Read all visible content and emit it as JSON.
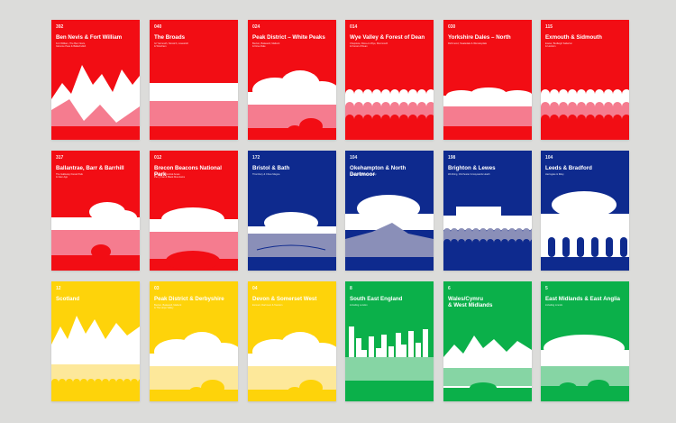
{
  "colors": {
    "background": "#dcdcda",
    "red": "#f20d14",
    "blue": "#0e2a8e",
    "yellow": "#fed30a",
    "green": "#0bb04a"
  },
  "cards": [
    {
      "num": "392",
      "title": "Ben Nevis & Fort William",
      "sub": "Fort William, The Ben Nevis,\nGlencoe Pass & Ballachulish",
      "color": "red",
      "art": "mountains"
    },
    {
      "num": "040",
      "title": "The Broads",
      "sub": "Gt Yarmouth, Norwich, Lowestoft\n& Wroxham",
      "color": "red",
      "art": "band"
    },
    {
      "num": "024",
      "title": "Peak District – White Peaks",
      "sub": "Buxton, Bakewell, Matlock\n& Dove Dale",
      "color": "red",
      "art": "clouds"
    },
    {
      "num": "014",
      "title": "Wye Valley & Forest of Dean",
      "sub": "Chepstow, Ross-on-Wye, Monmouth\n& Forest of Dean",
      "color": "red",
      "art": "scallop"
    },
    {
      "num": "030",
      "title": "Yorkshire Dales – North",
      "sub": "Richmond, Swaledale & Wensleydale",
      "color": "red",
      "art": "hills"
    },
    {
      "num": "115",
      "title": "Exmouth & Sidmouth",
      "sub": "Exeter, Budleigh Salterton\n& Honiton",
      "color": "red",
      "art": "scallop2"
    },
    {
      "num": "317",
      "title": "Ballantrae, Barr & Barrhill",
      "sub": "The Galloway Forest Park\n& Glen App",
      "color": "red",
      "art": "forest"
    },
    {
      "num": "012",
      "title": "Brecon Beacons National Park",
      "sub": "Western & Central Areas\nPen y Fan & Black Mountains",
      "color": "red",
      "art": "dome"
    },
    {
      "num": "172",
      "title": "Bristol & Bath",
      "sub": "Thornbury & Chew Magna",
      "color": "blue",
      "art": "bridge"
    },
    {
      "num": "104",
      "title": "Okehampton & North Dartmoor",
      "sub": "Chagford & Bovey Tracey",
      "color": "blue",
      "art": "moor"
    },
    {
      "num": "198",
      "title": "Brighton & Lewes",
      "sub": "Worthing, Chichester & Haywards Heath",
      "color": "blue",
      "art": "pavilion"
    },
    {
      "num": "104",
      "title": "Leeds & Bradford",
      "sub": "Harrogate & Ilkley",
      "color": "blue",
      "art": "viaduct"
    },
    {
      "num": "12",
      "title": "Scotland",
      "sub": "",
      "color": "yellow",
      "art": "peaks"
    },
    {
      "num": "03",
      "title": "Peak District & Derbyshire",
      "sub": "Buxton, Bakewell, Matlock\n& The Hope Valley",
      "color": "yellow",
      "art": "clouds2"
    },
    {
      "num": "04",
      "title": "Devon & Somerset West",
      "sub": "Exmoor, Dartmoor & Taunton",
      "color": "yellow",
      "art": "clouds3"
    },
    {
      "num": "8",
      "title": "South East England",
      "sub": "including London",
      "color": "green",
      "art": "skyline"
    },
    {
      "num": "6",
      "title": "Wales/Cymru\n& West Midlands",
      "sub": "",
      "color": "green",
      "art": "wales"
    },
    {
      "num": "5",
      "title": "East Midlands & East Anglia",
      "sub": "including Lincoln",
      "color": "green",
      "art": "trees"
    }
  ]
}
